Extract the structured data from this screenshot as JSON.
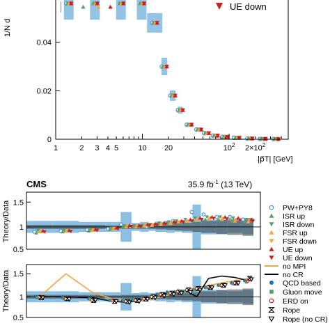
{
  "chart_data": [
    {
      "type": "scatter",
      "panel": "main",
      "xlabel": "|p⃗T| [GeV]",
      "ylabel": "1/N d",
      "xscale": "log",
      "xlim": [
        1,
        480
      ],
      "ylim": [
        0,
        0.058
      ],
      "x_tick_labels": [
        "1",
        "2",
        "3",
        "4",
        "5",
        "10",
        "20",
        "10",
        "2×10"
      ],
      "x_tick_exponent": "2",
      "y_tick_labels": [
        "0",
        "0.02",
        "0.04"
      ],
      "y_ticks": [
        0,
        0.02,
        0.04
      ],
      "legend_entry": "UE down",
      "bin_edges": [
        1,
        2,
        4,
        8,
        12,
        16,
        20,
        25,
        30,
        40,
        50,
        60,
        80,
        100,
        150,
        200,
        300,
        400
      ],
      "data": [
        0.056,
        0.056,
        0.056,
        0.056,
        0.048,
        0.03,
        0.018,
        0.012,
        0.006,
        0.004,
        0.0025,
        0.0015,
        0.001,
        0.0006,
        0.0003,
        0.00015,
        8e-05
      ],
      "series": [
        {
          "name": "PW+PY8",
          "color": "#4a90d9",
          "marker": "open-circle",
          "dx": -0.03
        },
        {
          "name": "ISR up",
          "color": "#5e9e6a",
          "marker": "triangle-up",
          "dx": -0.018
        },
        {
          "name": "ISR down",
          "color": "#5e9e6a",
          "marker": "triangle-down",
          "dx": -0.006
        },
        {
          "name": "FSR up",
          "color": "#f5a442",
          "marker": "triangle-up",
          "dx": 0.006
        },
        {
          "name": "FSR down",
          "color": "#f5a442",
          "marker": "triangle-down",
          "dx": 0.018
        },
        {
          "name": "UE up",
          "color": "#cc1f1f",
          "marker": "triangle-up",
          "dx": 0.03
        },
        {
          "name": "UE down",
          "color": "#cc1f1f",
          "marker": "triangle-down",
          "dx": 0.03
        }
      ]
    },
    {
      "type": "scatter",
      "panel": "ratio-1",
      "header_left": "CMS",
      "header_right": "35.9 fb",
      "header_right_exp": "-1",
      "header_right_tail": " (13 TeV)",
      "ylabel": "Theory/Data",
      "ylim": [
        0.55,
        1.7
      ],
      "y_tick_labels": [
        "0.5",
        "1",
        "1.5"
      ],
      "y_ticks": [
        0.5,
        1,
        1.5
      ],
      "xscale": "log",
      "xlim": [
        1,
        480
      ],
      "uncertainty_hatched": [
        0.04,
        0.04,
        0.04,
        0.03,
        0.04,
        0.04,
        0.04,
        0.04,
        0.05,
        0.06,
        0.07,
        0.08,
        0.1,
        0.12,
        0.14,
        0.16,
        0.18
      ],
      "uncertainty_total": [
        0.12,
        0.12,
        0.1,
        0.1,
        0.3,
        0.08,
        0.1,
        0.08,
        0.1,
        0.12,
        0.1,
        0.12,
        0.45,
        0.15,
        0.15,
        0.12,
        0.15
      ],
      "series": [
        {
          "name": "PW+PY8",
          "color": "#4a90d9",
          "marker": "open-circle",
          "values": [
            0.9,
            0.92,
            0.94,
            0.96,
            1.05,
            1.0,
            1.02,
            1.0,
            1.05,
            1.08,
            1.12,
            1.1,
            1.3,
            1.25,
            1.2,
            1.2,
            1.15
          ]
        },
        {
          "name": "ISR up",
          "color": "#5e9e6a",
          "marker": "triangle-up",
          "values": [
            0.88,
            0.9,
            0.92,
            0.95,
            1.0,
            1.0,
            1.0,
            1.02,
            1.05,
            1.05,
            1.08,
            1.1,
            1.12,
            1.15,
            1.15,
            1.12,
            1.1
          ]
        },
        {
          "name": "ISR down",
          "color": "#5e9e6a",
          "marker": "triangle-down",
          "values": [
            0.93,
            0.93,
            0.95,
            0.97,
            1.02,
            1.02,
            1.03,
            1.05,
            1.08,
            1.1,
            1.12,
            1.15,
            1.18,
            1.2,
            1.2,
            1.18,
            1.15
          ]
        },
        {
          "name": "FSR up",
          "color": "#f5a442",
          "marker": "triangle-up",
          "values": [
            0.9,
            0.92,
            0.93,
            0.96,
            1.0,
            1.0,
            1.02,
            1.03,
            1.05,
            1.07,
            1.1,
            1.12,
            1.15,
            1.16,
            1.15,
            1.12,
            1.1
          ]
        },
        {
          "name": "FSR down",
          "color": "#f5a442",
          "marker": "triangle-down",
          "values": [
            0.91,
            0.92,
            0.94,
            0.97,
            1.02,
            1.02,
            1.03,
            1.04,
            1.06,
            1.08,
            1.1,
            1.12,
            1.15,
            1.18,
            1.17,
            1.15,
            1.12
          ]
        },
        {
          "name": "UE up",
          "color": "#cc1f1f",
          "marker": "triangle-up",
          "values": [
            0.92,
            0.93,
            0.95,
            0.98,
            1.03,
            1.03,
            1.05,
            1.06,
            1.08,
            1.1,
            1.12,
            1.15,
            1.18,
            1.2,
            1.2,
            1.18,
            1.15
          ]
        },
        {
          "name": "UE down",
          "color": "#cc1f1f",
          "marker": "triangle-down",
          "values": [
            0.9,
            0.91,
            0.93,
            0.96,
            1.01,
            1.01,
            1.03,
            1.04,
            1.06,
            1.08,
            1.1,
            1.12,
            1.15,
            1.17,
            1.16,
            1.14,
            1.12
          ]
        }
      ]
    },
    {
      "type": "scatter",
      "panel": "ratio-2",
      "ylabel": "Theory/Data",
      "ylim": [
        0.55,
        1.7
      ],
      "y_tick_labels": [
        "0.5",
        "1",
        "1.5"
      ],
      "y_ticks": [
        0.5,
        1,
        1.5
      ],
      "xscale": "log",
      "xlim": [
        1,
        480
      ],
      "lines": [
        {
          "name": "no MPI",
          "color": "#f5a442",
          "values": [
            1.0,
            1.5,
            1.1,
            0.95,
            0.92,
            0.9,
            0.92,
            0.95,
            1.0,
            1.05,
            1.1,
            1.15,
            1.2,
            1.25,
            1.3,
            1.35,
            1.4
          ]
        },
        {
          "name": "no CR",
          "color": "#000000",
          "values": [
            1.0,
            1.0,
            0.98,
            0.9,
            0.88,
            0.9,
            0.95,
            1.0,
            1.05,
            1.1,
            1.1,
            1.12,
            1.0,
            1.4,
            1.45,
            1.42,
            1.35
          ]
        }
      ],
      "series": [
        {
          "name": "QCD based",
          "color": "#1a6fb5",
          "marker": "circle",
          "values": [
            1.0,
            0.98,
            0.96,
            0.92,
            0.92,
            0.93,
            0.95,
            0.98,
            1.05,
            1.1,
            1.1,
            1.12,
            1.15,
            1.2,
            1.25,
            1.3,
            1.35
          ]
        },
        {
          "name": "Gluon move",
          "color": "#5e9e6a",
          "marker": "square",
          "values": [
            0.98,
            0.96,
            0.95,
            0.92,
            0.92,
            0.93,
            0.96,
            1.0,
            1.05,
            1.08,
            1.1,
            1.12,
            1.15,
            1.2,
            1.25,
            1.28,
            1.32
          ]
        },
        {
          "name": "ERD on",
          "color": "#cc1f1f",
          "marker": "open-circle",
          "values": [
            1.0,
            0.95,
            0.93,
            0.92,
            0.9,
            0.93,
            0.96,
            1.0,
            1.05,
            1.08,
            1.12,
            1.15,
            1.18,
            1.22,
            1.25,
            1.3,
            1.35
          ]
        },
        {
          "name": "Rope",
          "color": "#000000",
          "marker": "bowtie",
          "values": [
            0.98,
            0.96,
            0.92,
            0.9,
            0.9,
            0.92,
            0.95,
            1.0,
            1.05,
            1.08,
            1.1,
            1.15,
            1.18,
            1.2,
            1.25,
            1.3,
            1.4
          ]
        },
        {
          "name": "Rope (no CR)",
          "color": "#000000",
          "marker": "open-triangle-down",
          "values": [
            0.98,
            0.95,
            0.93,
            0.9,
            0.88,
            0.9,
            0.95,
            0.98,
            1.02,
            1.05,
            1.08,
            1.1,
            1.15,
            1.2,
            1.25,
            1.3,
            1.38
          ]
        }
      ]
    }
  ]
}
